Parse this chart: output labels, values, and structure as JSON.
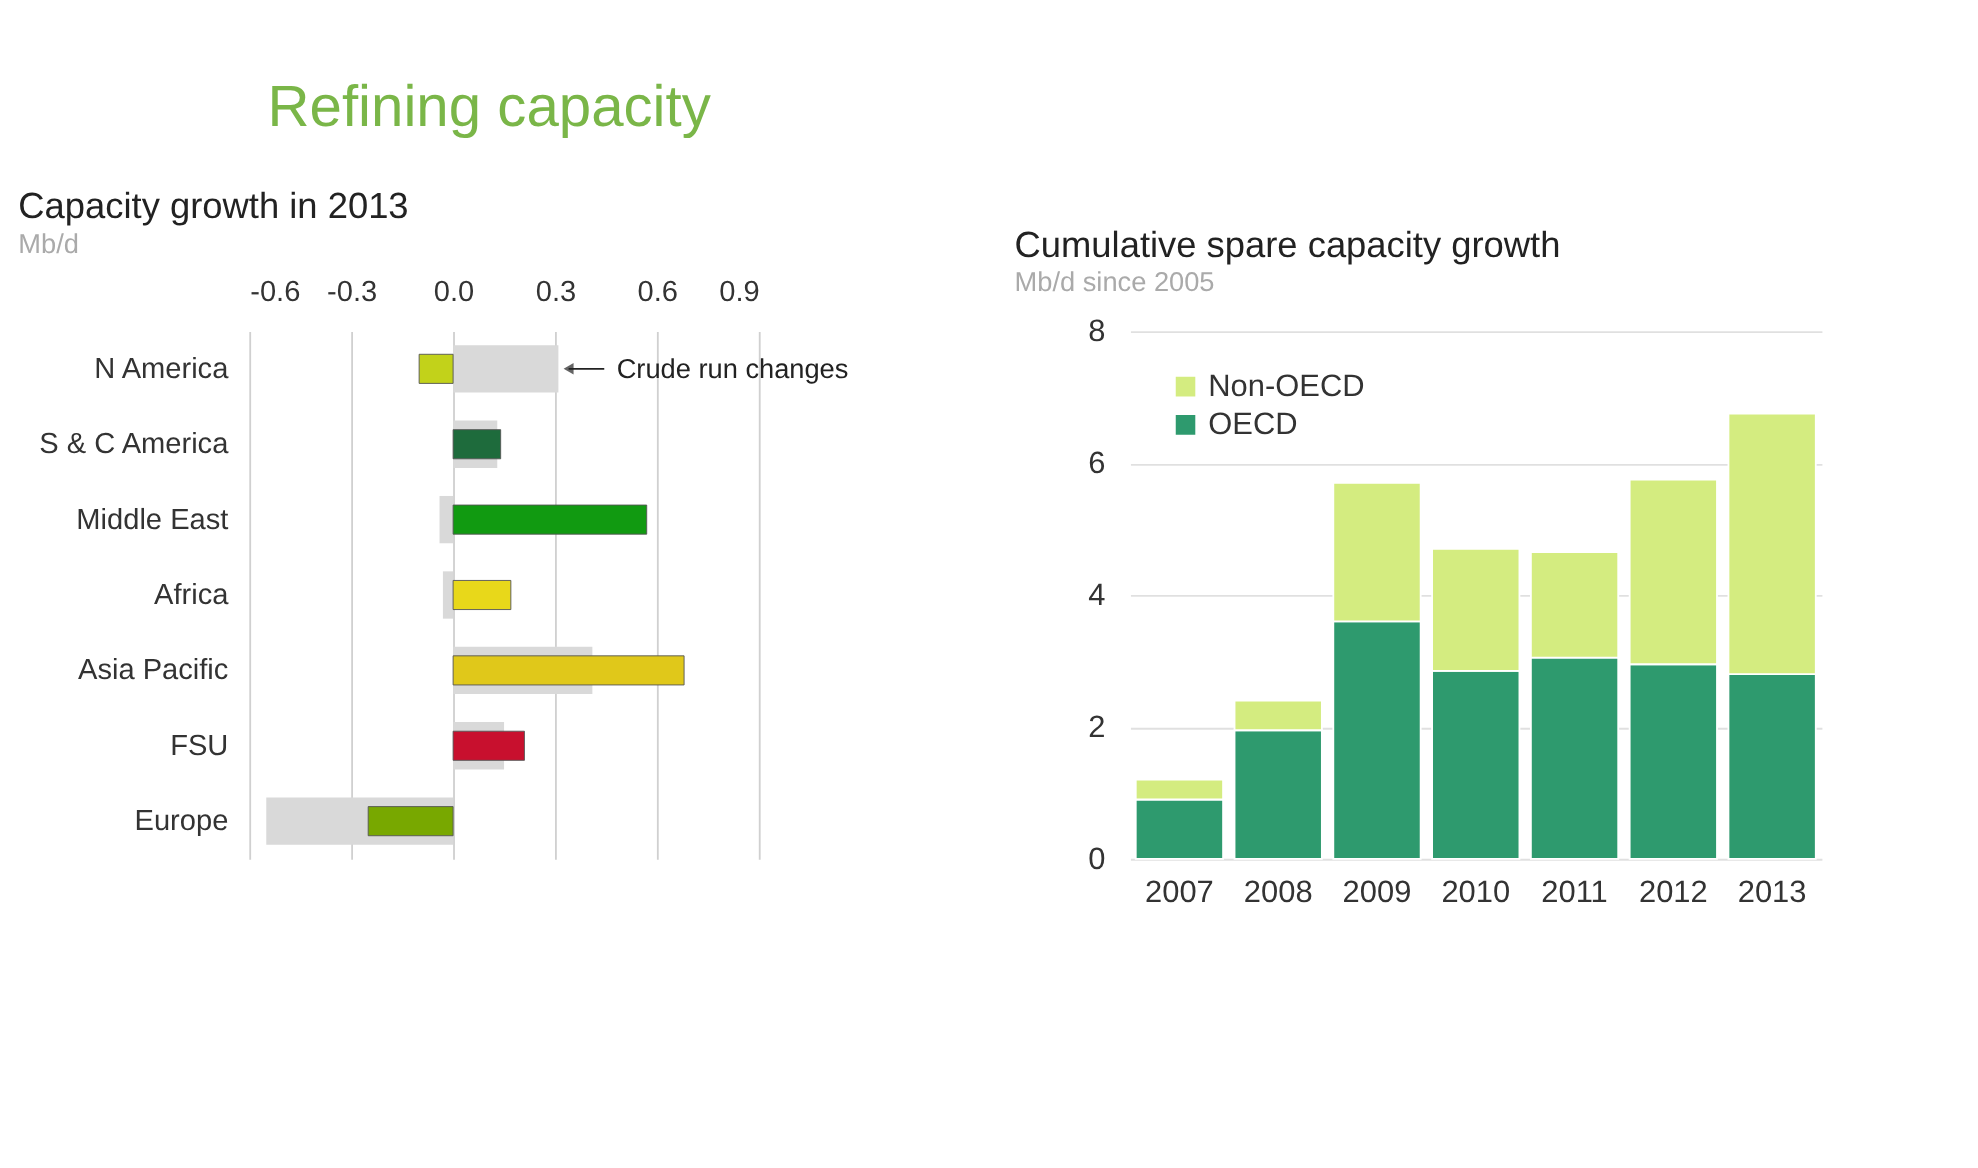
{
  "chart_data": [
    {
      "type": "other",
      "title": "Refining capacity"
    },
    {
      "type": "bar",
      "orientation": "horizontal",
      "title": "Capacity growth in 2013",
      "xlabel": "Mb/d",
      "categories": [
        "N America",
        "S & C America",
        "Middle East",
        "Africa",
        "Asia Pacific",
        "FSU",
        "Europe"
      ],
      "series": [
        {
          "name": "Crude run changes",
          "color": "#d9d9d9",
          "values": [
            0.31,
            0.13,
            -0.04,
            -0.03,
            0.41,
            0.15,
            -0.55
          ]
        },
        {
          "colors": [
            "#c2d21a",
            "#1e6b3c",
            "#119a11",
            "#e8d81a",
            "#e0c81a",
            "#c8102e",
            "#78a800"
          ],
          "values": [
            -0.1,
            0.14,
            0.57,
            0.17,
            0.68,
            0.21,
            -0.25
          ]
        }
      ],
      "xlim": [
        -0.6,
        0.9
      ],
      "xticks": [
        {
          "value": -0.6,
          "label": "-0.6"
        },
        {
          "value": -0.3,
          "label": "-0.3"
        },
        {
          "value": 0,
          "label": "0.0"
        },
        {
          "value": 0.3,
          "label": "0.3"
        },
        {
          "value": 0.6,
          "label": "0.6"
        },
        {
          "value": 0.9,
          "label": "0.9"
        }
      ],
      "grid": "x"
    },
    {
      "type": "bar",
      "stacked": true,
      "title": "Cumulative spare capacity growth",
      "ylabel": "Mb/d since 2005",
      "categories": [
        "2007",
        "2008",
        "2009",
        "2010",
        "2011",
        "2012",
        "2013"
      ],
      "series": [
        {
          "name": "OECD",
          "color": "#2e9a6e",
          "values": [
            0.9,
            1.95,
            3.6,
            2.85,
            3.05,
            2.95,
            2.8
          ]
        },
        {
          "name": "Non-OECD",
          "color": "#d4ec80",
          "values": [
            0.3,
            0.45,
            2.1,
            1.85,
            1.6,
            2.8,
            3.95
          ]
        }
      ],
      "ylim": [
        0,
        8
      ],
      "yticks": [
        0,
        2,
        4,
        6,
        8
      ],
      "grid": "y",
      "legend": "top left"
    }
  ]
}
